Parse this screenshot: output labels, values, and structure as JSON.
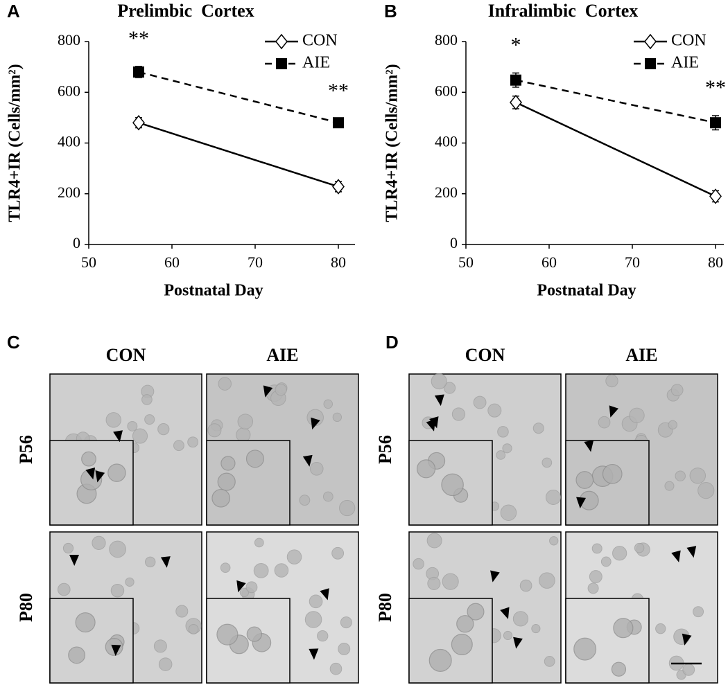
{
  "chart_data": [
    {
      "type": "line",
      "label": "A",
      "title": "Prelimbic  Cortex",
      "xlabel": "Postnatal Day",
      "ylabel": "TLR4+IR (Cells/mm²)",
      "x": [
        56,
        80
      ],
      "xlim": [
        50,
        82
      ],
      "xticks": [
        50,
        60,
        70,
        80
      ],
      "ylim": [
        0,
        800
      ],
      "yticks": [
        0,
        200,
        400,
        600,
        800
      ],
      "legend": "upper right",
      "series": [
        {
          "name": "CON",
          "color": "#000000",
          "linestyle": "solid",
          "marker": "open-diamond",
          "values": [
            480,
            228
          ],
          "errors": [
            20,
            20
          ]
        },
        {
          "name": "AIE",
          "color": "#000000",
          "linestyle": "dashed",
          "marker": "square",
          "values": [
            680,
            480
          ],
          "errors": [
            22,
            15
          ]
        }
      ],
      "annotations": [
        {
          "text": "**",
          "x": 56
        },
        {
          "text": "**",
          "x": 80
        }
      ]
    },
    {
      "type": "line",
      "label": "B",
      "title": "Infralimbic  Cortex",
      "xlabel": "Postnatal Day",
      "ylabel": "TLR4+IR (Cells/mm²)",
      "x": [
        56,
        80
      ],
      "xlim": [
        50,
        81
      ],
      "xticks": [
        50,
        60,
        70,
        80
      ],
      "ylim": [
        0,
        800
      ],
      "yticks": [
        0,
        200,
        400,
        600,
        800
      ],
      "legend": "upper right",
      "series": [
        {
          "name": "CON",
          "color": "#000000",
          "linestyle": "solid",
          "marker": "open-diamond",
          "values": [
            560,
            190
          ],
          "errors": [
            25,
            22
          ]
        },
        {
          "name": "AIE",
          "color": "#000000",
          "linestyle": "dashed",
          "marker": "square",
          "values": [
            648,
            480
          ],
          "errors": [
            28,
            28
          ]
        }
      ],
      "annotations": [
        {
          "text": "*",
          "x": 56
        },
        {
          "text": "**",
          "x": 80
        }
      ]
    }
  ],
  "micrographs": [
    {
      "label": "C",
      "columns": [
        "CON",
        "AIE"
      ],
      "rows": [
        "P56",
        "P80"
      ]
    },
    {
      "label": "D",
      "columns": [
        "CON",
        "AIE"
      ],
      "rows": [
        "P56",
        "P80"
      ]
    }
  ]
}
